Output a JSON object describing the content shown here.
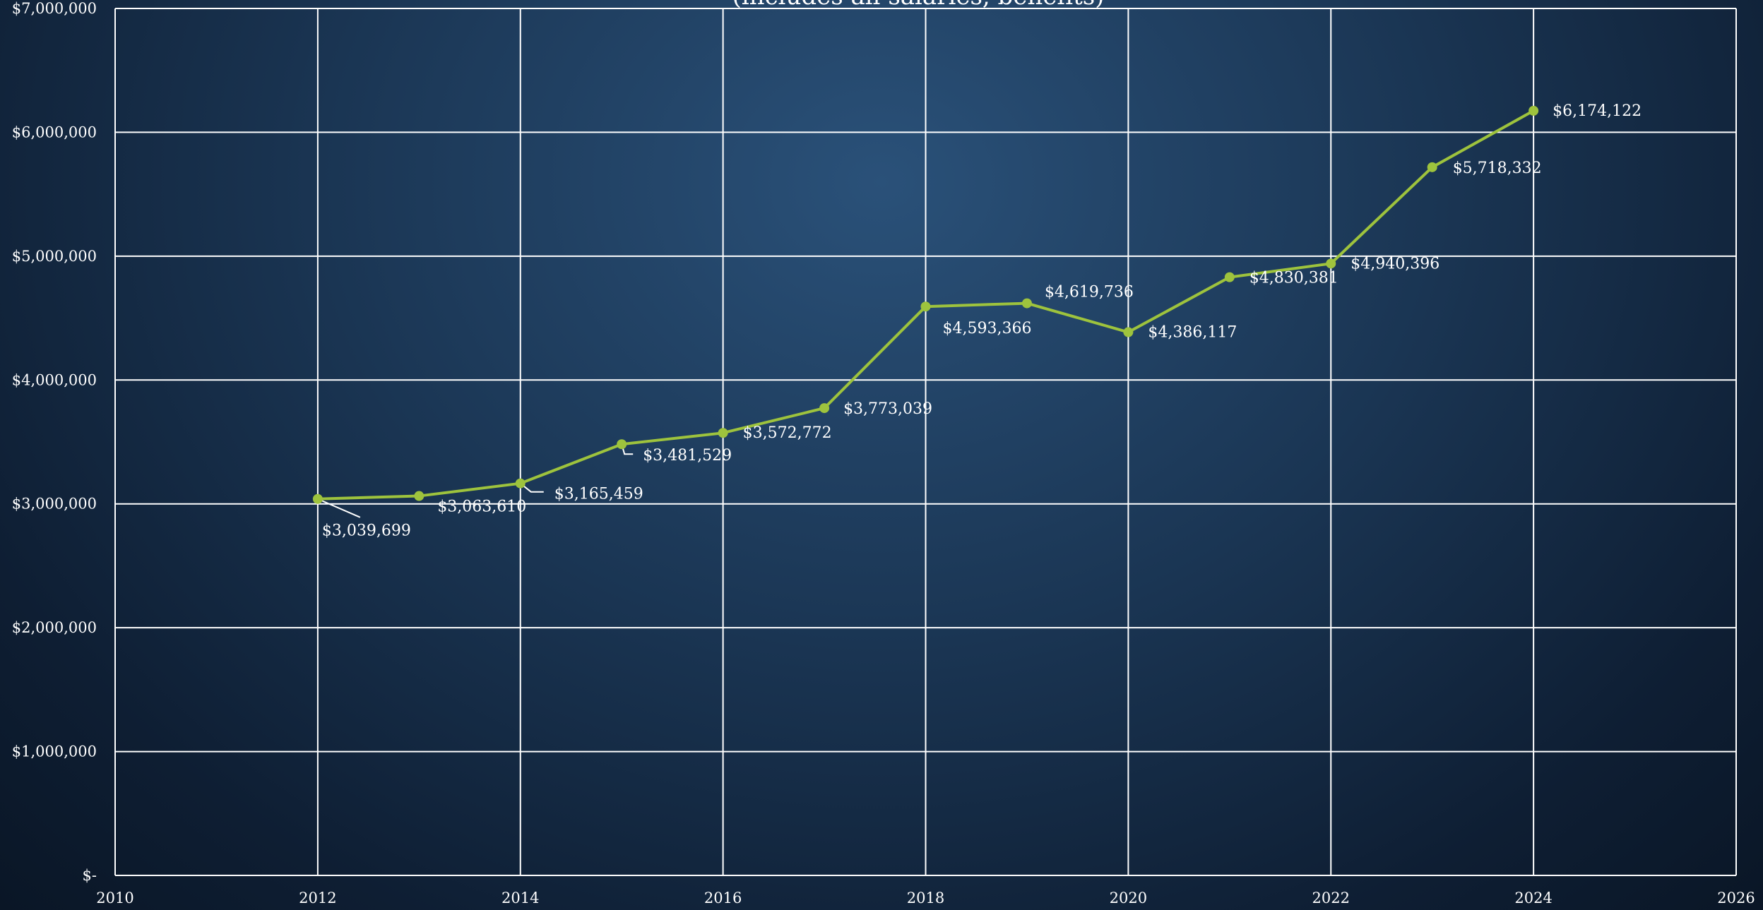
{
  "colors": {
    "background_top": "#2a5179",
    "background_bottom": "#0a1626",
    "grid": "#ffffff",
    "series_line": "#9ec33d",
    "text": "#ffffff"
  },
  "chart_data": {
    "type": "scatter",
    "subtitle": "(includes all salaries, benefits)",
    "xlim": [
      2010,
      2026
    ],
    "ylim": [
      0,
      7000000
    ],
    "x_ticks": [
      "2010",
      "2012",
      "2014",
      "2016",
      "2018",
      "2020",
      "2022",
      "2024",
      "2026"
    ],
    "y_ticks": [
      "$-",
      "$1,000,000",
      "$2,000,000",
      "$3,000,000",
      "$4,000,000",
      "$5,000,000",
      "$6,000,000",
      "$7,000,000"
    ],
    "grid": true,
    "lines_connect_points": true,
    "series": [
      {
        "x": [
          2012,
          2013,
          2014,
          2015,
          2016,
          2017,
          2018,
          2019,
          2020,
          2021,
          2022,
          2023,
          2024
        ],
        "y": [
          3039699,
          3063610,
          3165459,
          3481529,
          3572772,
          3773039,
          4593366,
          4619736,
          4386117,
          4830381,
          4940396,
          5718332,
          6174122
        ],
        "labels": [
          "$3,039,699",
          "$3,063,610",
          "$3,165,459",
          "$3,481,529",
          "$3,572,772",
          "$3,773,039",
          "$4,593,366",
          "$4,619,736",
          "$4,386,117",
          "$4,830,381",
          "$4,940,396",
          "$5,718,332",
          "$6,174,122"
        ]
      }
    ]
  }
}
